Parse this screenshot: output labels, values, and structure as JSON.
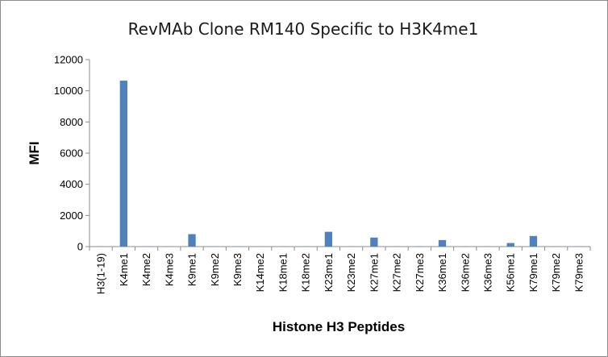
{
  "chart_data": {
    "type": "bar",
    "title": "RevMAb Clone RM140 Specific to H3K4me1",
    "xlabel": "Histone H3 Peptides",
    "ylabel": "MFI",
    "ylim": [
      0,
      12000
    ],
    "yticks": [
      0,
      2000,
      4000,
      6000,
      8000,
      10000,
      12000
    ],
    "grid": false,
    "legend": "none",
    "categories": [
      "H3(1-19)",
      "K4me1",
      "K4me2",
      "K4me3",
      "K9me1",
      "K9me2",
      "K9me3",
      "K14me2",
      "K18me1",
      "K18me2",
      "K23me1",
      "K23me2",
      "K27me1",
      "K27me2",
      "K27me3",
      "K36me1",
      "K36me2",
      "K36me3",
      "K56me1",
      "K79me1",
      "K79me2",
      "K79me3"
    ],
    "values": [
      20,
      10650,
      20,
      20,
      800,
      20,
      20,
      20,
      20,
      20,
      950,
      20,
      580,
      20,
      20,
      420,
      20,
      20,
      230,
      680,
      20,
      20
    ],
    "bar_color": "#4f81bd"
  }
}
